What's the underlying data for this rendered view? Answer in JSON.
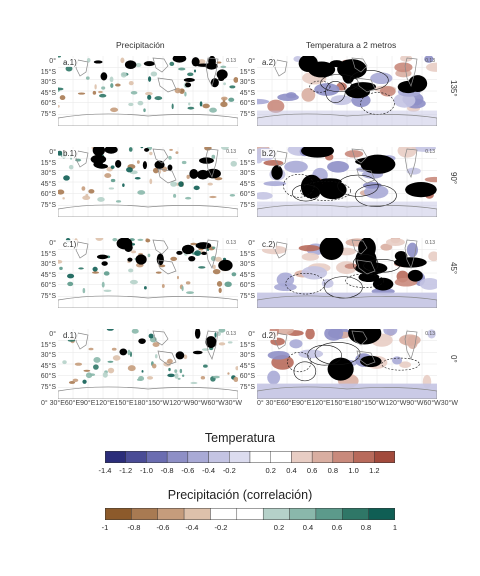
{
  "columns": {
    "left": "Precipitación",
    "right": "Temperatura a 2 metros"
  },
  "panels": [
    {
      "id": "a.1)",
      "row": 0,
      "col": 0
    },
    {
      "id": "a.2)",
      "row": 0,
      "col": 1
    },
    {
      "id": "b.1)",
      "row": 1,
      "col": 0
    },
    {
      "id": "b.2)",
      "row": 1,
      "col": 1
    },
    {
      "id": "c.1)",
      "row": 2,
      "col": 0
    },
    {
      "id": "c.2)",
      "row": 2,
      "col": 1
    },
    {
      "id": "d.1)",
      "row": 3,
      "col": 0
    },
    {
      "id": "d.2)",
      "row": 3,
      "col": 1
    }
  ],
  "panel_tag": "0.13",
  "row_labels": [
    "135°",
    "90°",
    "45°",
    "0°"
  ],
  "lat_ticks": [
    "0°",
    "15°S",
    "30°S",
    "45°S",
    "60°S",
    "75°S"
  ],
  "lon_ticks": [
    "0°",
    "30°E",
    "60°E",
    "90°E",
    "120°E",
    "150°E",
    "180°",
    "150°W",
    "120°W",
    "90°W",
    "60°W",
    "30°W"
  ],
  "lon_ticks_text": "0° 30°E60°E90°E120°E150°E180°150°W120°W90°W60°W30°W",
  "chart_data": [
    {
      "type": "heatmap",
      "title": "Temperatura",
      "colorbar_ticks": [
        "-1.4",
        "-1.2",
        "-1.0",
        "-0.8",
        "-0.6",
        "-0.4",
        "-0.2",
        "0.2",
        "0.4",
        "0.6",
        "0.8",
        "1.0",
        "1.2"
      ],
      "range": [
        -1.4,
        1.4
      ],
      "colors": [
        "#2b2d7a",
        "#4a4c96",
        "#6b6db1",
        "#8e8fc6",
        "#a9aad6",
        "#c4c4e3",
        "#dcdcef",
        "#ffffff",
        "#ffffff",
        "#e8cdc4",
        "#d9aea1",
        "#c98a7c",
        "#b86a5b",
        "#a24a3c"
      ]
    },
    {
      "type": "heatmap",
      "title": "Precipitación (correlación)",
      "colorbar_ticks": [
        "-1",
        "-0.8",
        "-0.6",
        "-0.4",
        "-0.2",
        "0.2",
        "0.4",
        "0.6",
        "0.8",
        "1"
      ],
      "range": [
        -1,
        1
      ],
      "colors": [
        "#8c5a2b",
        "#a87a52",
        "#c59c7c",
        "#ddc1ab",
        "#ffffff",
        "#ffffff",
        "#b5d1c9",
        "#8ab8ab",
        "#5c9a8b",
        "#2f7767",
        "#0f5e54"
      ]
    }
  ]
}
